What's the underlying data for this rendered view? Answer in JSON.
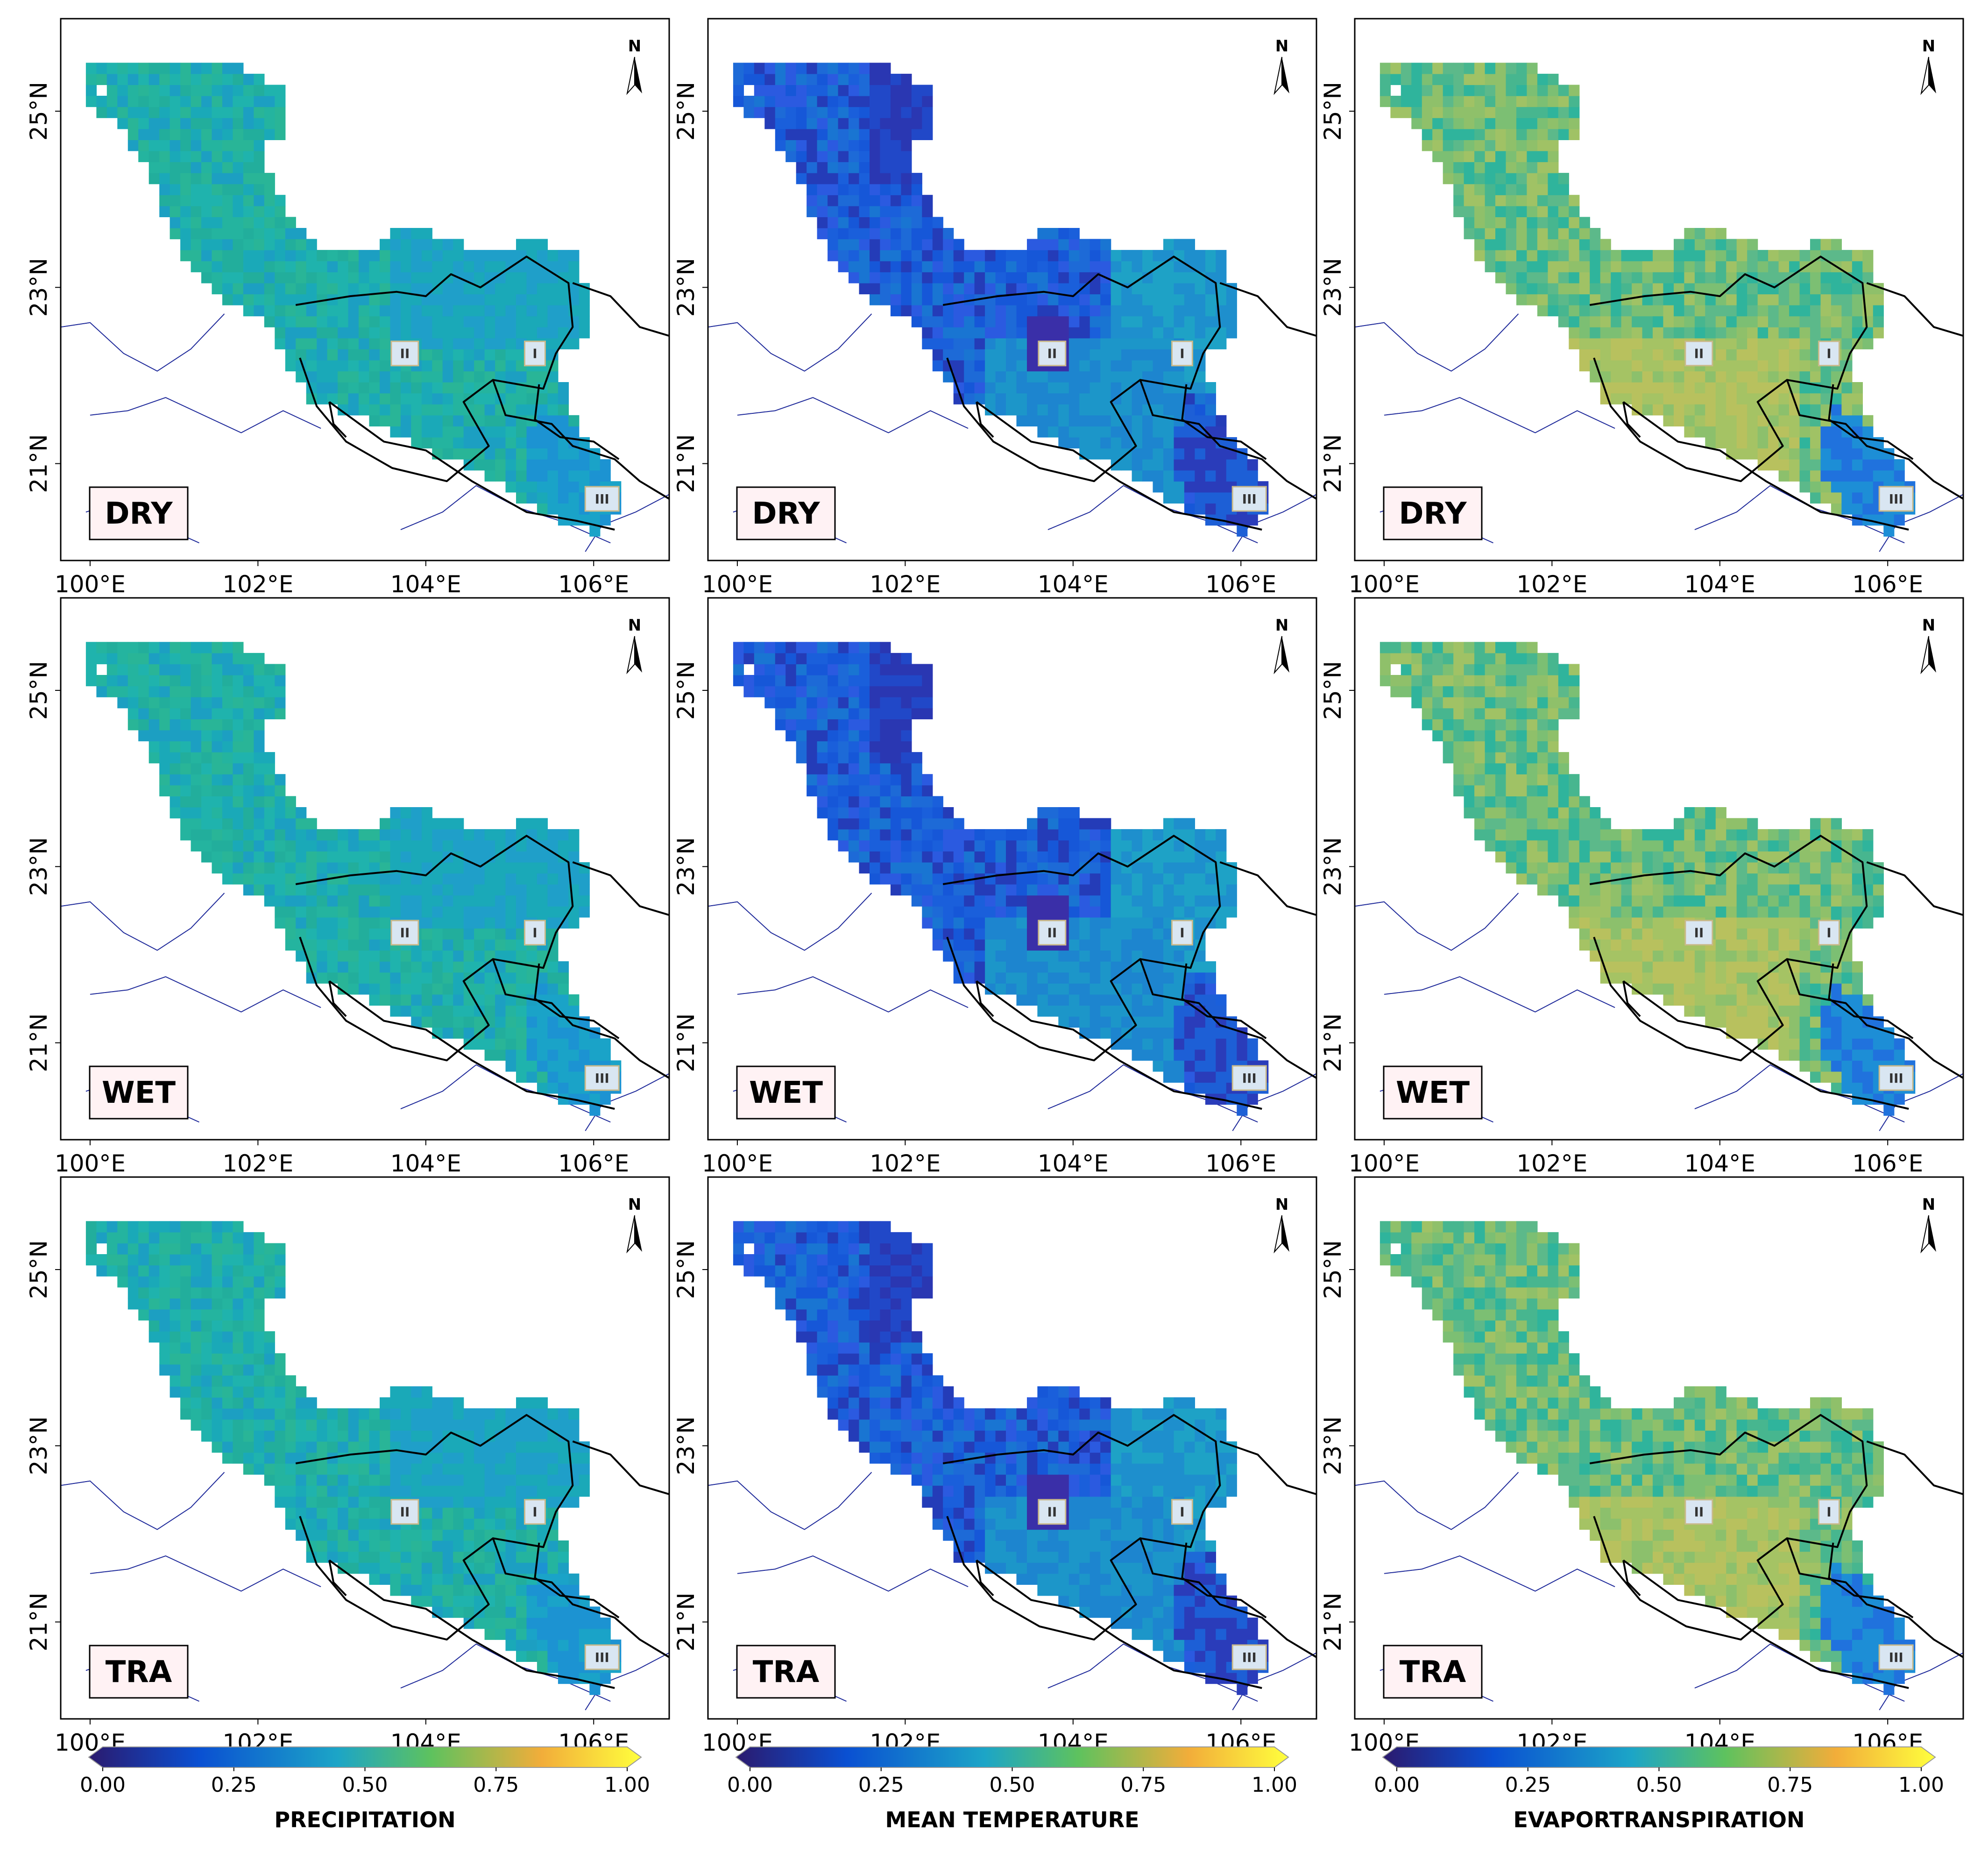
{
  "figure": {
    "x_tick_labels": [
      "100°E",
      "102°E",
      "104°E",
      "106°E"
    ],
    "y_tick_labels": [
      "25°N",
      "23°N",
      "21°N"
    ],
    "north_label": "N",
    "zone_labels": [
      "I",
      "II",
      "III"
    ],
    "seasons": [
      "DRY",
      "WET",
      "TRA"
    ],
    "variables": [
      {
        "name": "PRECIPITATION",
        "palette": "precip"
      },
      {
        "name": "MEAN TEMPERATURE",
        "palette": "temp"
      },
      {
        "name": "EVAPORTRANSPIRATION",
        "palette": "evap"
      }
    ],
    "colorbar": {
      "ticks": [
        "0.00",
        "0.25",
        "0.50",
        "0.75",
        "1.00"
      ],
      "colors": [
        "#2b1a6e",
        "#0a50d2",
        "#1ca5c7",
        "#5ec25e",
        "#f2ad3a",
        "#ffff3d"
      ]
    },
    "boundary_color": "#000000",
    "river_color": "#1f2a9a",
    "label_box_fill": "#fff2f4"
  }
}
